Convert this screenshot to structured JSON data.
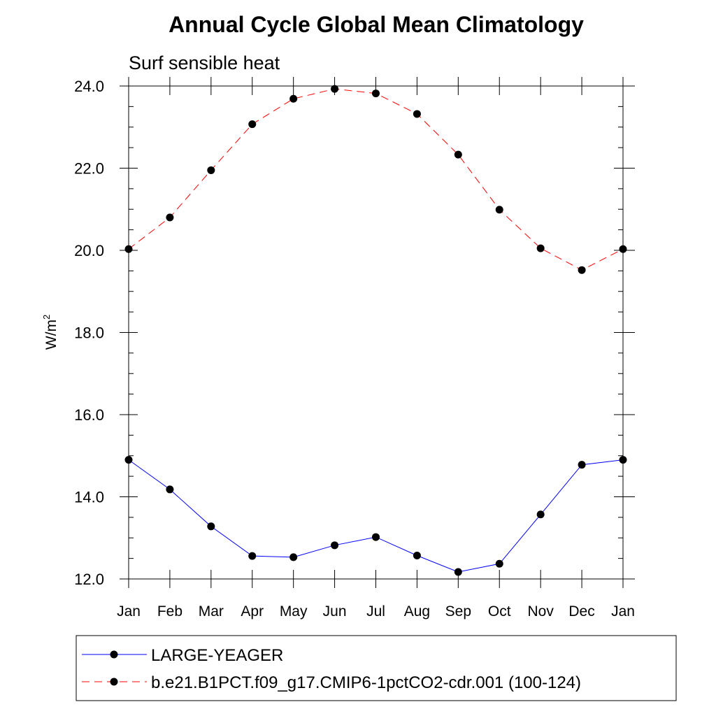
{
  "chart_data": {
    "type": "line",
    "title": "Annual Cycle Global Mean Climatology",
    "subtitle": "Surf sensible heat",
    "xlabel": "",
    "ylabel": "W/m",
    "ylabel_superscript": "2",
    "ylim": [
      12.0,
      24.0
    ],
    "y_ticks": [
      "12.0",
      "14.0",
      "16.0",
      "18.0",
      "20.0",
      "22.0",
      "24.0"
    ],
    "categories": [
      "Jan",
      "Feb",
      "Mar",
      "Apr",
      "May",
      "Jun",
      "Jul",
      "Aug",
      "Sep",
      "Oct",
      "Nov",
      "Dec",
      "Jan"
    ],
    "grid": false,
    "legend_position": "bottom",
    "series": [
      {
        "name": "LARGE-YEAGER",
        "color": "#0000ff",
        "line_style": "solid",
        "marker": "filled-circle",
        "values": [
          14.9,
          14.18,
          13.28,
          12.56,
          12.53,
          12.82,
          13.02,
          12.57,
          12.17,
          12.37,
          13.57,
          14.78,
          14.9
        ]
      },
      {
        "name": "b.e21.B1PCT.f09_g17.CMIP6-1pctCO2-cdr.001 (100-124)",
        "color": "#ff0000",
        "line_style": "dashed",
        "marker": "filled-circle",
        "values": [
          20.03,
          20.8,
          21.95,
          23.07,
          23.69,
          23.93,
          23.82,
          23.32,
          22.33,
          20.99,
          20.05,
          19.52,
          20.03
        ]
      }
    ]
  }
}
